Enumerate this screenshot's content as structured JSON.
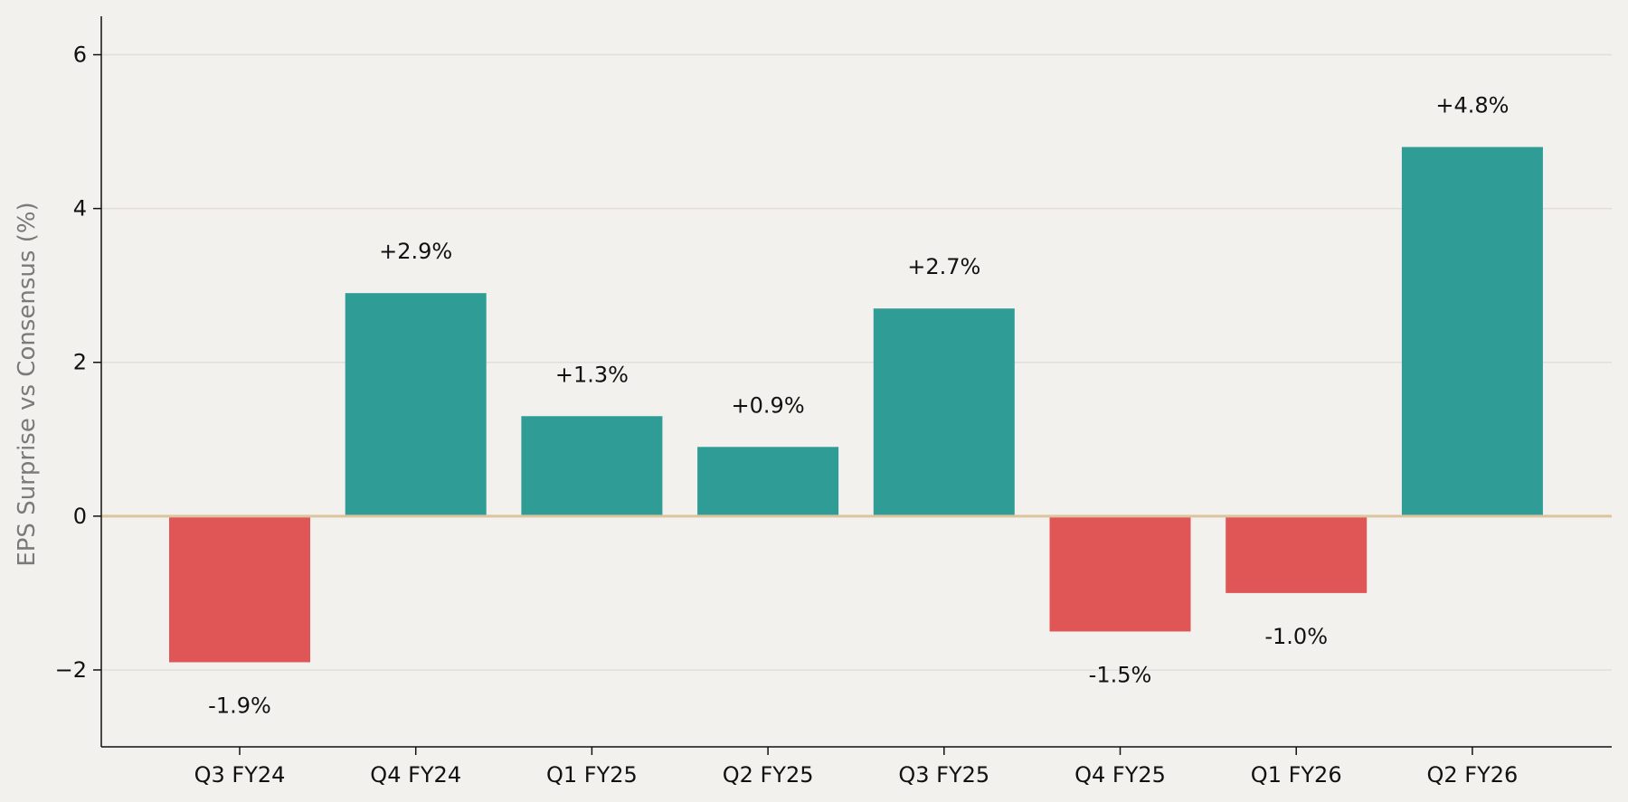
{
  "chart_data": {
    "type": "bar",
    "title": "",
    "xlabel": "",
    "ylabel": "EPS Surprise vs Consensus (%)",
    "categories": [
      "Q3 FY24",
      "Q4 FY24",
      "Q1 FY25",
      "Q2 FY25",
      "Q3 FY25",
      "Q4 FY25",
      "Q1 FY26",
      "Q2 FY26"
    ],
    "values": [
      -1.9,
      2.9,
      1.3,
      0.9,
      2.7,
      -1.5,
      -1.0,
      4.8
    ],
    "data_labels": [
      "-1.9%",
      "+2.9%",
      "+1.3%",
      "+0.9%",
      "+2.7%",
      "-1.5%",
      "-1.0%",
      "+4.8%"
    ],
    "ylim": [
      -3,
      6.5
    ],
    "yticks": [
      -2,
      0,
      2,
      4,
      6
    ],
    "ytick_labels": [
      "−2",
      "0",
      "2",
      "4",
      "6"
    ],
    "grid": "horizontal",
    "legend": "none",
    "colors": {
      "positive": "#2f9c96",
      "negative": "#e05656",
      "zero_line": "#dcc49f",
      "grid": "#e2dfda",
      "axis": "#111111",
      "background": "#f3f1ed"
    }
  }
}
